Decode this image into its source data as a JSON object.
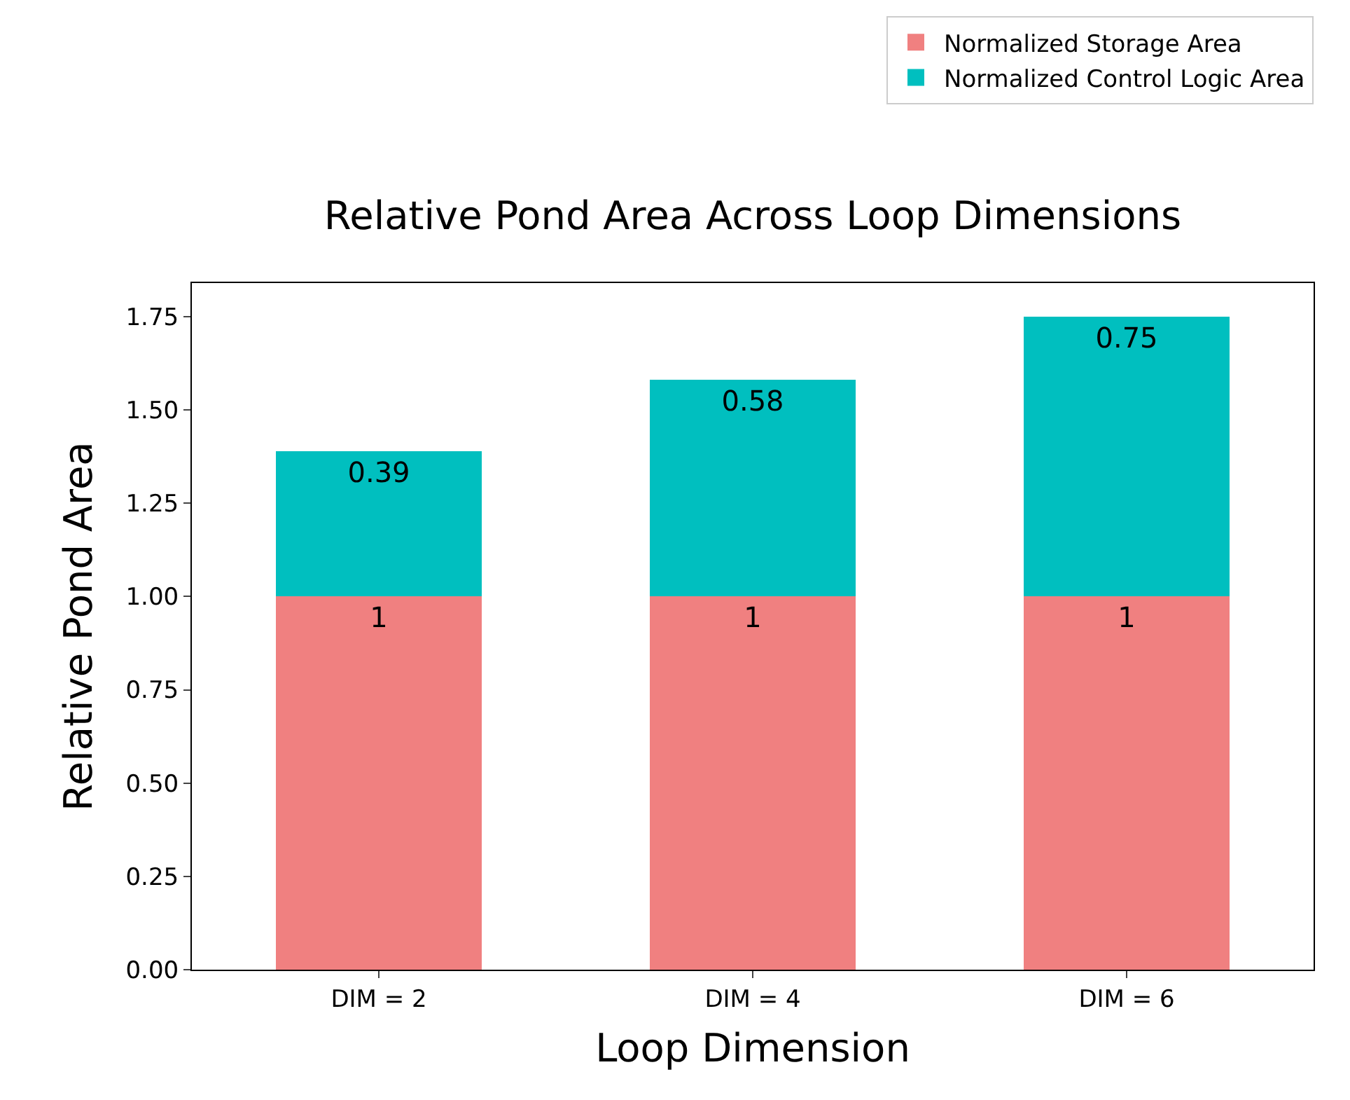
{
  "chart_data": {
    "type": "bar",
    "title": "Relative Pond Area Across Loop Dimensions",
    "xlabel": "Loop Dimension",
    "ylabel": "Relative Pond Area",
    "categories": [
      "DIM = 2",
      "DIM = 4",
      "DIM = 6"
    ],
    "series": [
      {
        "name": "Normalized Storage Area",
        "color": "#f08080",
        "values": [
          1,
          1,
          1
        ]
      },
      {
        "name": "Normalized Control Logic Area",
        "color": "#00bfbf",
        "values": [
          0.39,
          0.58,
          0.75
        ]
      }
    ],
    "stacked": true,
    "data_labels": true,
    "legend": "top right",
    "ylim": [
      0,
      1.84
    ],
    "yticks": [
      {
        "value": 0,
        "label": "0.00"
      },
      {
        "value": 0.25,
        "label": "0.25"
      },
      {
        "value": 0.5,
        "label": "0.50"
      },
      {
        "value": 0.75,
        "label": "0.75"
      },
      {
        "value": 1,
        "label": "1.00"
      },
      {
        "value": 1.25,
        "label": "1.25"
      },
      {
        "value": 1.5,
        "label": "1.50"
      },
      {
        "value": 1.75,
        "label": "1.75"
      }
    ]
  }
}
